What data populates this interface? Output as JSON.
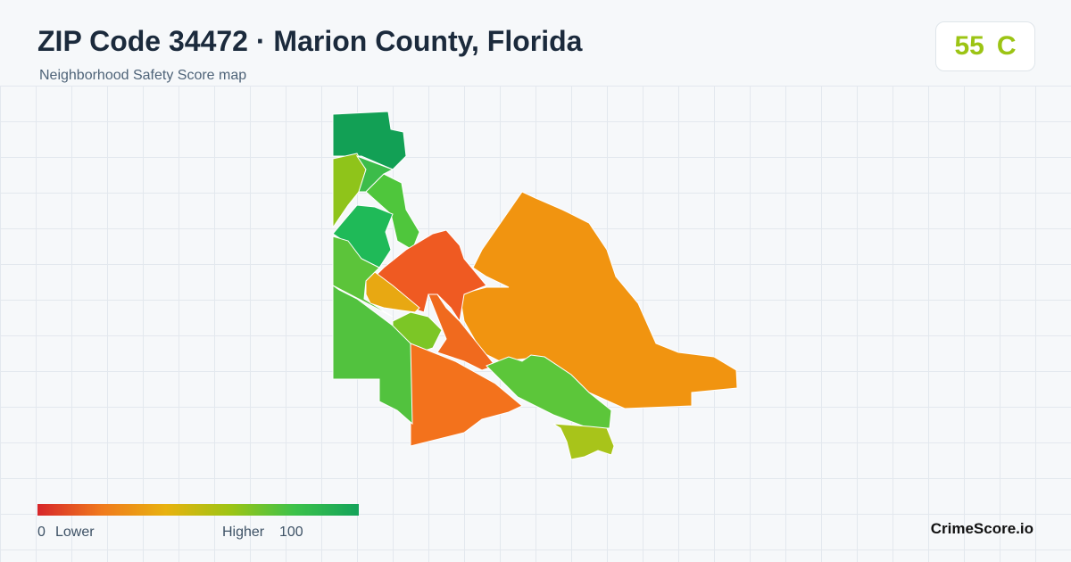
{
  "header": {
    "title": "ZIP Code 34472 · Marion County, Florida",
    "subtitle": "Neighborhood Safety Score map"
  },
  "score": {
    "value": 55,
    "grade": "C"
  },
  "legend": {
    "min": 0,
    "min_label": "Lower",
    "max_label": "Higher",
    "max": 100
  },
  "brand": "CrimeScore.io"
}
